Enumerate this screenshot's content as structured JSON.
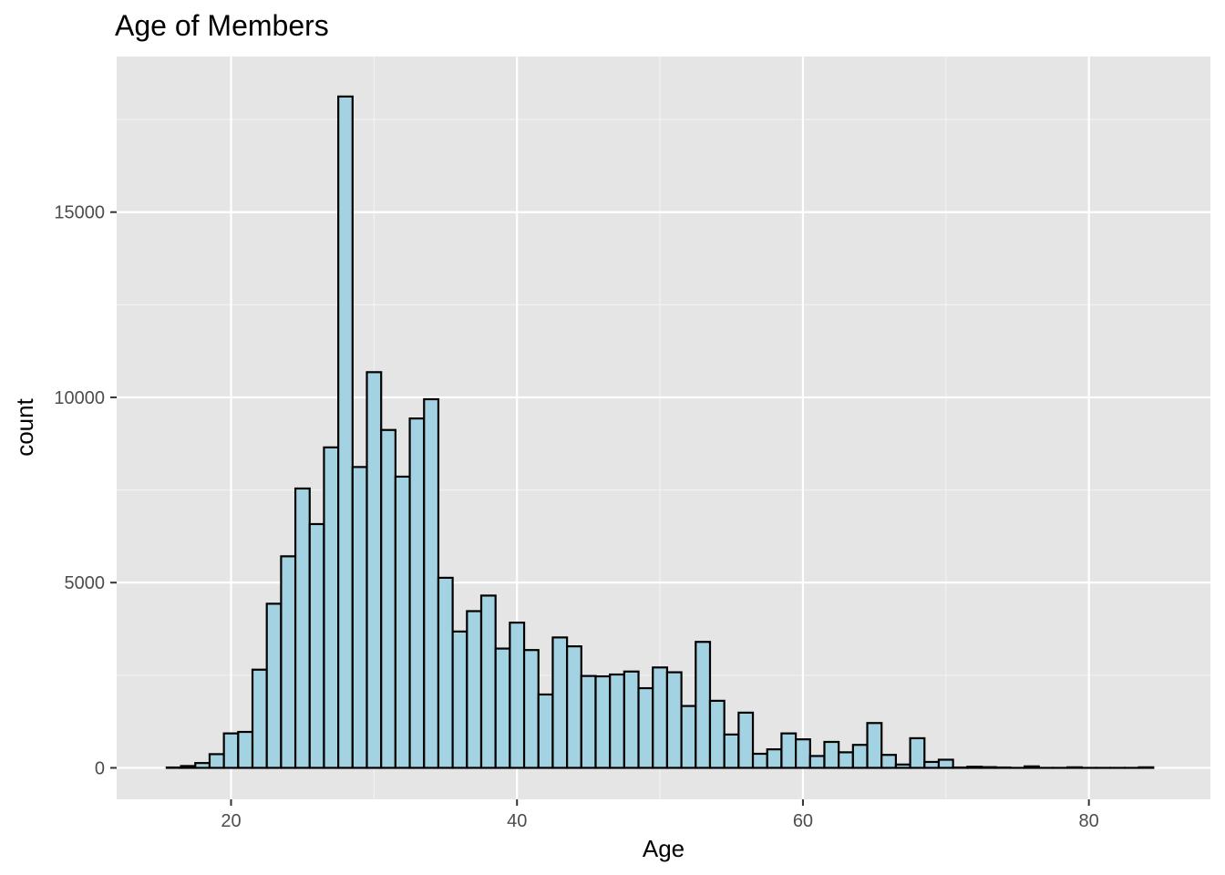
{
  "chart_data": {
    "type": "bar",
    "title": "Age of Members",
    "xlabel": "Age",
    "ylabel": "count",
    "xlim": [
      12,
      88.5
    ],
    "ylim": [
      -850,
      19200
    ],
    "x_ticks": [
      20,
      40,
      60,
      80
    ],
    "y_ticks": [
      0,
      5000,
      10000,
      15000
    ],
    "x_tick_labels": [
      "20",
      "40",
      "60",
      "80"
    ],
    "y_tick_labels": [
      "0",
      "5000",
      "10000",
      "15000"
    ],
    "grid": true,
    "bin_width": 1,
    "bin_centers": [
      16,
      17,
      18,
      19,
      20,
      21,
      22,
      23,
      24,
      25,
      26,
      27,
      28,
      29,
      30,
      31,
      32,
      33,
      34,
      35,
      36,
      37,
      38,
      39,
      40,
      41,
      42,
      43,
      44,
      45,
      46,
      47,
      48,
      49,
      50,
      51,
      52,
      53,
      54,
      55,
      56,
      57,
      58,
      59,
      60,
      61,
      62,
      63,
      64,
      65,
      66,
      67,
      68,
      69,
      70,
      71,
      72,
      73,
      74,
      75,
      76,
      77,
      78,
      79,
      80,
      81,
      82,
      83,
      84
    ],
    "values": [
      10,
      50,
      130,
      370,
      930,
      970,
      2650,
      4430,
      5710,
      7540,
      6580,
      8650,
      18120,
      8120,
      10680,
      9120,
      7860,
      9430,
      9950,
      5130,
      3680,
      4230,
      4650,
      3220,
      3920,
      3180,
      1980,
      3520,
      3280,
      2480,
      2470,
      2520,
      2600,
      2150,
      2710,
      2580,
      1670,
      3400,
      1810,
      900,
      1490,
      380,
      500,
      930,
      770,
      320,
      700,
      420,
      620,
      1210,
      350,
      90,
      800,
      160,
      220,
      10,
      30,
      20,
      10,
      0,
      40,
      0,
      0,
      15,
      0,
      0,
      0,
      0,
      15
    ],
    "colors": {
      "fill": "#a3d3e2",
      "stroke": "#000000",
      "panel": "#e5e5e5",
      "grid_major": "#ffffff",
      "grid_minor": "#f2f2f2"
    }
  }
}
